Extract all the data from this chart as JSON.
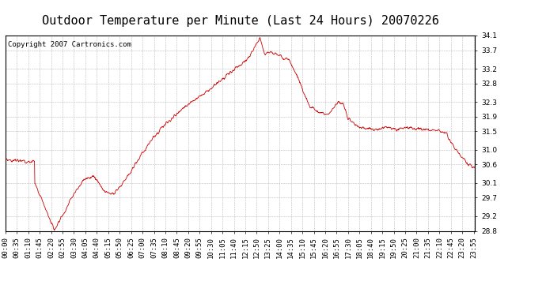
{
  "title": "Outdoor Temperature per Minute (Last 24 Hours) 20070226",
  "copyright_text": "Copyright 2007 Cartronics.com",
  "line_color": "#cc0000",
  "background_color": "#ffffff",
  "grid_color": "#bbbbbb",
  "ylim": [
    28.8,
    34.1
  ],
  "yticks": [
    28.8,
    29.2,
    29.7,
    30.1,
    30.6,
    31.0,
    31.5,
    31.9,
    32.3,
    32.8,
    33.2,
    33.7,
    34.1
  ],
  "xtick_labels": [
    "00:00",
    "00:35",
    "01:10",
    "01:45",
    "02:20",
    "02:55",
    "03:30",
    "04:05",
    "04:40",
    "05:15",
    "05:50",
    "06:25",
    "07:00",
    "07:35",
    "08:10",
    "08:45",
    "09:20",
    "09:55",
    "10:30",
    "11:05",
    "11:40",
    "12:15",
    "12:50",
    "13:25",
    "14:00",
    "14:35",
    "15:10",
    "15:45",
    "16:20",
    "16:55",
    "17:30",
    "18:05",
    "18:40",
    "19:15",
    "19:50",
    "20:25",
    "21:00",
    "21:35",
    "22:10",
    "22:45",
    "23:20",
    "23:55"
  ],
  "title_fontsize": 11,
  "tick_fontsize": 6.5,
  "copyright_fontsize": 6.5
}
